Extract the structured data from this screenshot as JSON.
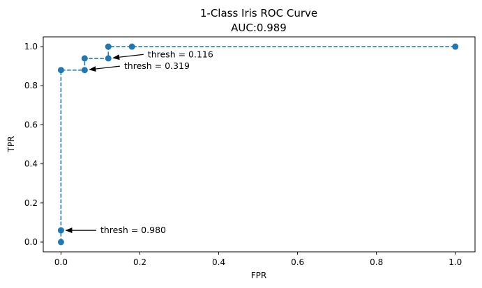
{
  "chart_data": {
    "type": "line",
    "title": "1-Class Iris ROC Curve",
    "subtitle": "AUC:0.989",
    "xlabel": "FPR",
    "ylabel": "TPR",
    "xlim": [
      -0.045,
      1.05
    ],
    "ylim": [
      -0.05,
      1.05
    ],
    "xticks": [
      0.0,
      0.2,
      0.4,
      0.6,
      0.8,
      1.0
    ],
    "xtick_labels": [
      "0.0",
      "0.2",
      "0.4",
      "0.6",
      "0.8",
      "1.0"
    ],
    "yticks": [
      0.0,
      0.2,
      0.4,
      0.6,
      0.8,
      1.0
    ],
    "ytick_labels": [
      "0.0",
      "0.2",
      "0.4",
      "0.6",
      "0.8",
      "1.0"
    ],
    "grid": false,
    "series": [
      {
        "color": "#1f77b4",
        "line_style": "dashed",
        "marker": "circle",
        "x": [
          0.0,
          0.0,
          0.0,
          0.06,
          0.06,
          0.12,
          0.12,
          0.18,
          1.0
        ],
        "y": [
          0.0,
          0.06,
          0.88,
          0.88,
          0.94,
          0.94,
          1.0,
          1.0,
          1.0
        ]
      }
    ],
    "annotations": [
      {
        "text": "thresh = 0.980",
        "point": [
          0.0,
          0.06
        ],
        "text_pos": [
          0.1,
          0.06
        ]
      },
      {
        "text": "thresh = 0.319",
        "point": [
          0.06,
          0.88
        ],
        "text_pos": [
          0.16,
          0.9
        ]
      },
      {
        "text": "thresh = 0.116",
        "point": [
          0.12,
          0.94
        ],
        "text_pos": [
          0.22,
          0.96
        ]
      }
    ]
  }
}
